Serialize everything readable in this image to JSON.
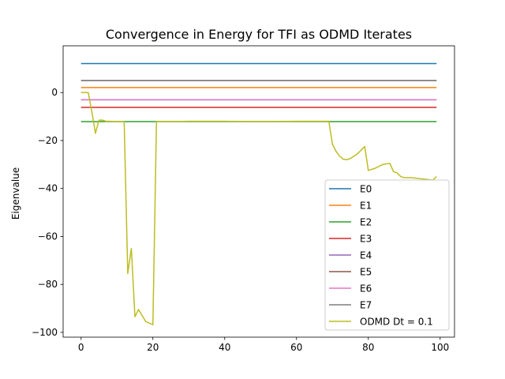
{
  "chart_data": {
    "type": "line",
    "title": "Convergence in Energy for TFI as ODMD Iterates",
    "xlabel": "",
    "ylabel": "Eigenvalue",
    "xlim": [
      -5,
      104
    ],
    "ylim": [
      -102,
      19.5
    ],
    "xticks": [
      0,
      20,
      40,
      60,
      80,
      100
    ],
    "yticks": [
      -100,
      -80,
      -60,
      -40,
      -20,
      0
    ],
    "grid": false,
    "legend_position": "lower right",
    "series": [
      {
        "name": "E0",
        "color": "#1f77b4",
        "x": [
          0,
          99
        ],
        "y": [
          12.1,
          12.1
        ]
      },
      {
        "name": "E1",
        "color": "#ff7f0e",
        "x": [
          0,
          99
        ],
        "y": [
          2.1,
          2.1
        ]
      },
      {
        "name": "E2",
        "color": "#2ca02c",
        "x": [
          0,
          99
        ],
        "y": [
          -12.1,
          -12.1
        ]
      },
      {
        "name": "E3",
        "color": "#d62728",
        "x": [
          0,
          99
        ],
        "y": [
          -6.2,
          -6.2
        ]
      },
      {
        "name": "E4",
        "color": "#9467bd",
        "x": [
          0,
          99
        ],
        "y": [
          -3.0,
          -3.0
        ]
      },
      {
        "name": "E5",
        "color": "#8c564b",
        "x": [
          0,
          99
        ],
        "y": [
          5.0,
          5.0
        ]
      },
      {
        "name": "E6",
        "color": "#e377c2",
        "x": [
          0,
          99
        ],
        "y": [
          -3.0,
          -3.0
        ]
      },
      {
        "name": "E7",
        "color": "#7f7f7f",
        "x": [
          0,
          99
        ],
        "y": [
          5.0,
          5.0
        ]
      },
      {
        "name": "ODMD Dt = 0.1",
        "color": "#bcbd22",
        "x": [
          0,
          2,
          3,
          4,
          5,
          6,
          7,
          8,
          10,
          12,
          13,
          14,
          15,
          16,
          18,
          20,
          21,
          25,
          30,
          40,
          50,
          60,
          68,
          69,
          70,
          71,
          72,
          73,
          74,
          75,
          76,
          77,
          78,
          79,
          80,
          82,
          84,
          86,
          87,
          88,
          89,
          90,
          92,
          95,
          98,
          99
        ],
        "y": [
          0.0,
          0.0,
          -8.0,
          -17.0,
          -11.5,
          -11.5,
          -12.0,
          -12.0,
          -12.1,
          -12.1,
          -75.5,
          -65.0,
          -93.5,
          -90.5,
          -95.5,
          -96.8,
          -12.1,
          -12.1,
          -12.0,
          -12.0,
          -12.1,
          -12.0,
          -12.0,
          -12.0,
          -21.5,
          -24.5,
          -26.5,
          -27.8,
          -28.0,
          -27.5,
          -26.5,
          -25.5,
          -24.0,
          -22.5,
          -32.5,
          -31.5,
          -30.0,
          -29.5,
          -33.0,
          -33.5,
          -35.0,
          -35.5,
          -35.5,
          -36.0,
          -36.5,
          -35.0
        ]
      }
    ]
  }
}
